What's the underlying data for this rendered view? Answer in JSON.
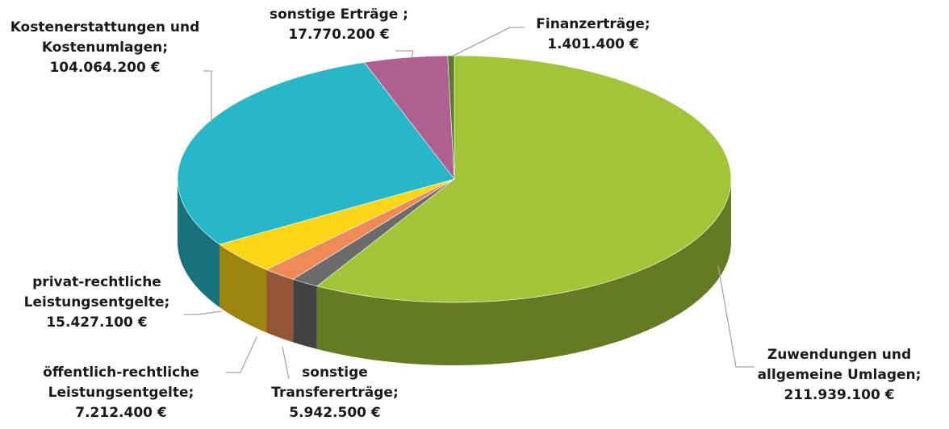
{
  "chart_data": {
    "type": "pie3d",
    "categories": [
      "Zuwendungen und allgemeine Umlagen;",
      "sonstige Transfererträge;",
      "öffentlich-rechtliche Leistungsentgelte;",
      "privat-rechtliche Leistungsentgelte;",
      "Kostenerstattungen und Kostenumlagen;",
      "sonstige Erträge ;",
      "Finanzerträge;"
    ],
    "values": [
      211939100,
      5942500,
      7212400,
      15427100,
      104064200,
      17770200,
      1401400
    ],
    "value_labels": [
      "211.939.100 €",
      "5.942.500 €",
      "7.212.400 €",
      "15.427.100 €",
      "104.064.200 €",
      "17.770.200 €",
      "1.401.400 €"
    ],
    "colors": [
      "#a2c538",
      "#6b6b6b",
      "#ee8a58",
      "#fcd616",
      "#27b7c8",
      "#b06090",
      "#5a7a2a"
    ]
  }
}
